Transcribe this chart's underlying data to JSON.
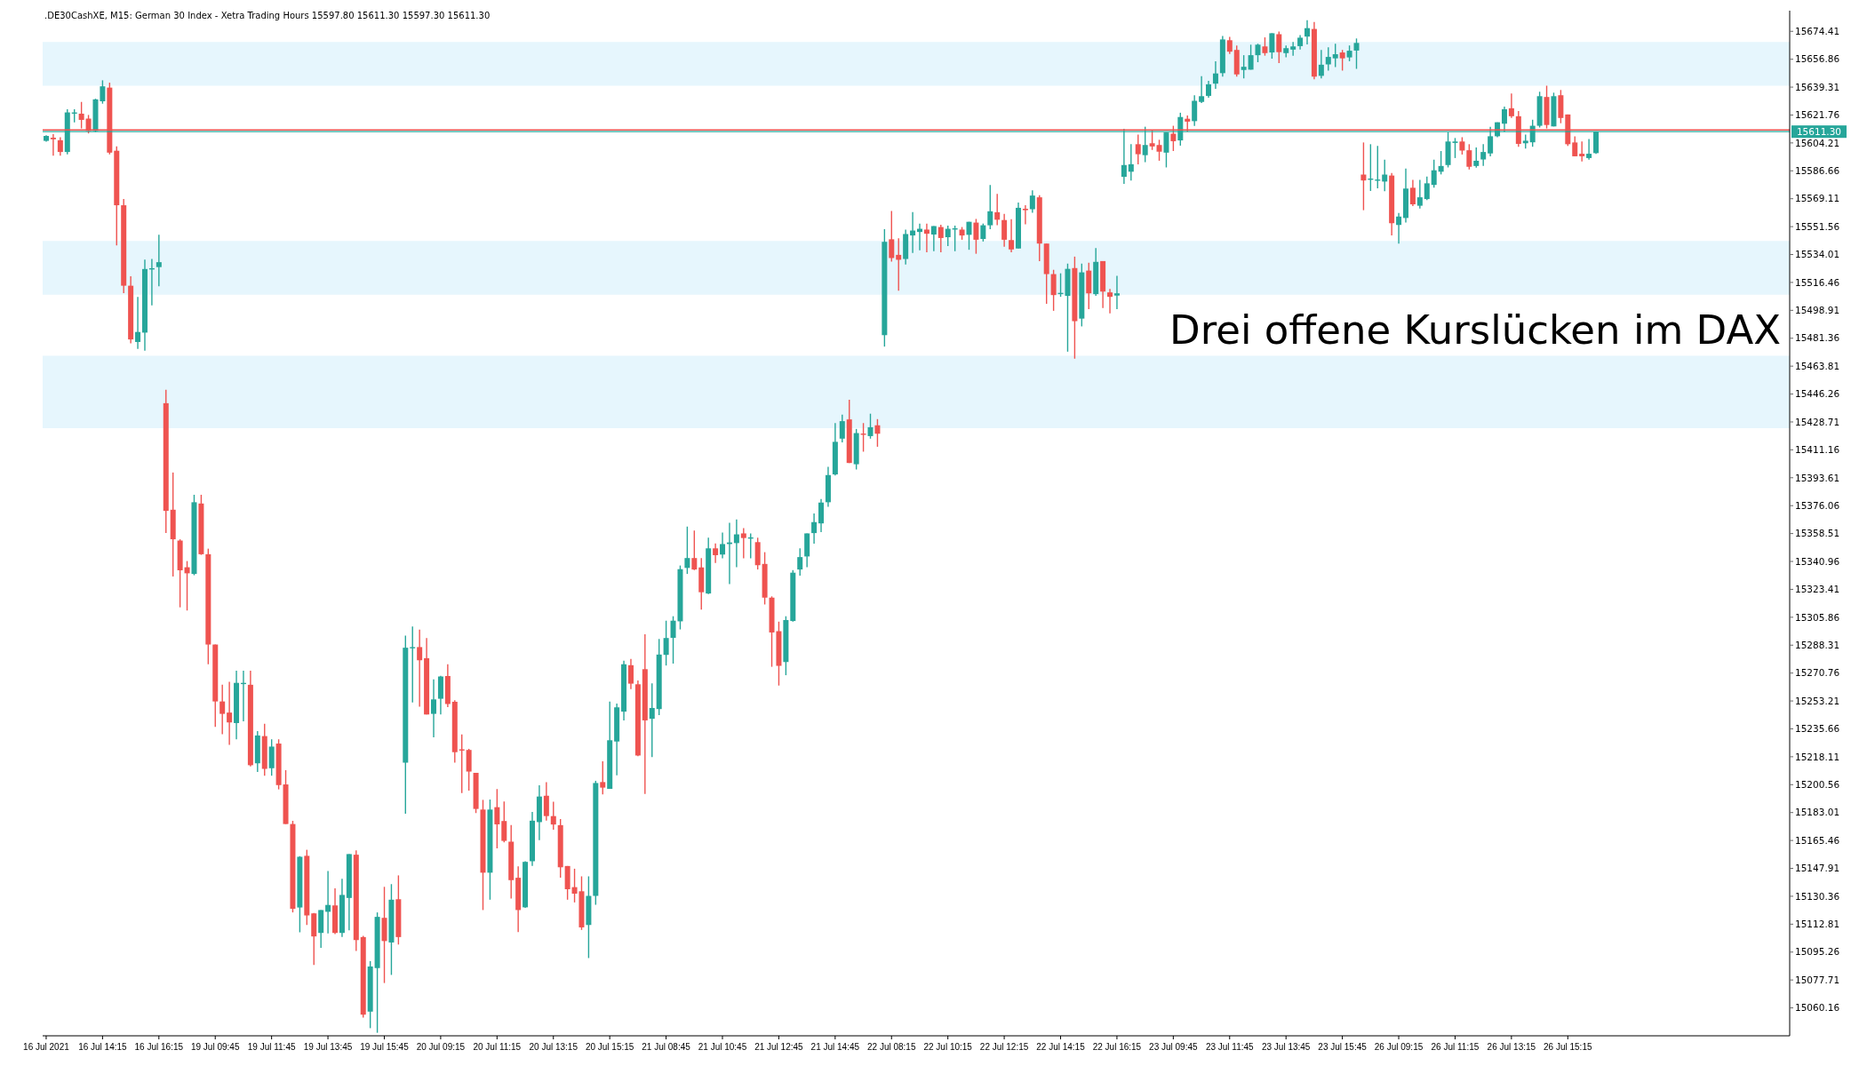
{
  "chart_data": {
    "type": "candlestick",
    "title": ".DE30CashXE, M15: German 30 Index - Xetra Trading Hours 15597.80 15611.30 15597.30 15611.30",
    "annotations": [
      "Drei offene Kurslücken im DAX"
    ],
    "categories": [
      "16 Jul 2021",
      null,
      null,
      null,
      null,
      null,
      null,
      null,
      "16 Jul 14:15",
      null,
      null,
      null,
      null,
      null,
      null,
      null,
      "16 Jul 16:15",
      null,
      null,
      null,
      null,
      null,
      null,
      null,
      "19 Jul 09:45",
      null,
      null,
      null,
      null,
      null,
      null,
      null,
      "19 Jul 11:45",
      null,
      null,
      null,
      null,
      null,
      null,
      null,
      "19 Jul 13:45",
      null,
      null,
      null,
      null,
      null,
      null,
      null,
      "19 Jul 15:45",
      null,
      null,
      null,
      null,
      null,
      null,
      null,
      "20 Jul 09:15",
      null,
      null,
      null,
      null,
      null,
      null,
      null,
      "20 Jul 11:15",
      null,
      null,
      null,
      null,
      null,
      null,
      null,
      "20 Jul 13:15",
      null,
      null,
      null,
      null,
      null,
      null,
      null,
      "20 Jul 15:15",
      null,
      null,
      null,
      null,
      null,
      null,
      null,
      "21 Jul 08:45",
      null,
      null,
      null,
      null,
      null,
      null,
      null,
      "21 Jul 10:45",
      null,
      null,
      null,
      null,
      null,
      null,
      null,
      "21 Jul 12:45",
      null,
      null,
      null,
      null,
      null,
      null,
      null,
      "21 Jul 14:45",
      null,
      null,
      null,
      null,
      null,
      null,
      null,
      "22 Jul 08:15",
      null,
      null,
      null,
      null,
      null,
      null,
      null,
      "22 Jul 10:15",
      null,
      null,
      null,
      null,
      null,
      null,
      null,
      "22 Jul 12:15",
      null,
      null,
      null,
      null,
      null,
      null,
      null,
      "22 Jul 14:15",
      null,
      null,
      null,
      null,
      null,
      null,
      null,
      "22 Jul 16:15",
      null,
      null,
      null,
      null,
      null,
      null,
      null,
      "23 Jul 09:45",
      null,
      null,
      null,
      null,
      null,
      null,
      null,
      "23 Jul 11:45",
      null,
      null,
      null,
      null,
      null,
      null,
      null,
      "23 Jul 13:45",
      null,
      null,
      null,
      null,
      null,
      null,
      null,
      "23 Jul 15:45",
      null,
      null,
      null,
      null,
      null,
      null,
      null,
      "26 Jul 09:15",
      null,
      null,
      null,
      null,
      null,
      null,
      null,
      "26 Jul 11:15",
      null,
      null,
      null,
      null,
      null,
      null,
      null,
      "26 Jul 13:15",
      null,
      null,
      null,
      null,
      null,
      null,
      null,
      "26 Jul 15:15",
      null,
      null,
      null,
      null,
      null,
      null,
      null,
      null,
      null,
      null,
      null,
      null,
      null,
      null,
      null,
      null,
      null,
      null,
      null,
      null,
      null,
      null,
      null,
      null,
      null,
      null,
      null,
      null,
      null,
      null,
      null
    ],
    "ohlc": [
      [
        15605.5,
        15609,
        15605,
        15608.6
      ],
      [
        15607.5,
        15609.8,
        15596.2,
        15606.5
      ],
      [
        15605.9,
        15607.8,
        15596.2,
        15598.5
      ],
      [
        15598.5,
        15625.4,
        15597,
        15623.4
      ],
      [
        15622.6,
        15625.4,
        15617.2,
        15623
      ],
      [
        15622.6,
        15630,
        15613.3,
        15618.7
      ],
      [
        15619.5,
        15621.8,
        15610.2,
        15611.7
      ],
      [
        15611.7,
        15632,
        15611,
        15631.6
      ],
      [
        15630.4,
        15643.6,
        15628.9,
        15639.8
      ],
      [
        15639,
        15642.1,
        15597,
        15598.1
      ],
      [
        15599.3,
        15602,
        15539.7,
        15565
      ],
      [
        15565,
        15568.9,
        15509.7,
        15514.4
      ],
      [
        15514.4,
        15520.3,
        15478.2,
        15480.6
      ],
      [
        15479,
        15507.4,
        15474.7,
        15485.3
      ],
      [
        15484.9,
        15530.8,
        15473.5,
        15524.9
      ],
      [
        15524.5,
        15531.2,
        15502,
        15525
      ],
      [
        15526.1,
        15546.4,
        15514,
        15529.2
      ],
      [
        15440.5,
        15449,
        15358.8,
        15372.8
      ],
      [
        15373.5,
        15396.9,
        15331.5,
        15354.9
      ],
      [
        15354.1,
        15354.9,
        15312.1,
        15335.4
      ],
      [
        15337.3,
        15341.2,
        15310.1,
        15333.5
      ],
      [
        15333.1,
        15382.9,
        15332.3,
        15378.2
      ],
      [
        15377.4,
        15382.9,
        15345.1,
        15345.5
      ],
      [
        15345.5,
        15349,
        15276.3,
        15288.7
      ],
      [
        15288.7,
        15288.7,
        15236.9,
        15252.9
      ],
      [
        15252.9,
        15263.4,
        15232.3,
        15245.1
      ],
      [
        15245.9,
        15265.3,
        15225.6,
        15239.7
      ],
      [
        15239.3,
        15272.3,
        15229.1,
        15264.6
      ],
      [
        15264,
        15272.3,
        15240.4,
        15264.2
      ],
      [
        15263.4,
        15272.3,
        15212,
        15212.8
      ],
      [
        15214,
        15234.2,
        15208.5,
        15231.5
      ],
      [
        15231.1,
        15238.9,
        15206.2,
        15210.5
      ],
      [
        15210.9,
        15229.1,
        15206.2,
        15224.5
      ],
      [
        15226.4,
        15229.1,
        15197.6,
        15200.3
      ],
      [
        15200.7,
        15209.7,
        15175.8,
        15175.8
      ],
      [
        15175.8,
        15177.8,
        15120.2,
        15122.5
      ],
      [
        15123.3,
        15155.6,
        15107.7,
        15155.2
      ],
      [
        15155.8,
        15159.6,
        15112.3,
        15118.3
      ],
      [
        15119.6,
        15119.8,
        15087.1,
        15105.1
      ],
      [
        15107.3,
        15121.7,
        15097.9,
        15121.7
      ],
      [
        15120.6,
        15146.3,
        15107,
        15124.9
      ],
      [
        15124.6,
        15135.4,
        15106.6,
        15107.3
      ],
      [
        15107.3,
        15141.4,
        15104.7,
        15131.2
      ],
      [
        15129.3,
        15156.9,
        15108.9,
        15156.9
      ],
      [
        15156.5,
        15159.2,
        15096,
        15102.8
      ],
      [
        15104.7,
        15105.5,
        15054,
        15055.9
      ],
      [
        15057.8,
        15089.6,
        15047.4,
        15086.2
      ],
      [
        15085.2,
        15120.2,
        15044.5,
        15117.4
      ],
      [
        15116.8,
        15136.3,
        15075.8,
        15102.2
      ],
      [
        15101.3,
        15138,
        15080.9,
        15128.2
      ],
      [
        15128.5,
        15143.5,
        15100,
        15104.7
      ],
      [
        15214.4,
        15294.3,
        15182.3,
        15286.7
      ],
      [
        15286.3,
        15300,
        15252.3,
        15286.7
      ],
      [
        15287.1,
        15298.1,
        15249.6,
        15278.8
      ],
      [
        15280.1,
        15292.8,
        15244.7,
        15244.7
      ],
      [
        15245.1,
        15266.8,
        15230.3,
        15254.2
      ],
      [
        15254.6,
        15269.1,
        15244.7,
        15268.6
      ],
      [
        15268.9,
        15276.3,
        15249.3,
        15251.3
      ],
      [
        15252.7,
        15253.6,
        15214.4,
        15221
      ],
      [
        15222.4,
        15232.2,
        15195.3,
        15222
      ],
      [
        15222.4,
        15223.1,
        15196.8,
        15208.8
      ],
      [
        15208,
        15208,
        15182.7,
        15185.3
      ],
      [
        15184.9,
        15191,
        15121.7,
        15145.2
      ],
      [
        15145.2,
        15191.2,
        15128.2,
        15184.9
      ],
      [
        15186.4,
        15197.8,
        15160.5,
        15175.6
      ],
      [
        15177.7,
        15190,
        15164.3,
        15165.2
      ],
      [
        15164.7,
        15175.1,
        15128.9,
        15140.5
      ],
      [
        15142,
        15149.2,
        15107.9,
        15121.7
      ],
      [
        15123.4,
        15152.4,
        15123,
        15152
      ],
      [
        15152.4,
        15183.4,
        15149.5,
        15177.9
      ],
      [
        15177,
        15200.1,
        15165.6,
        15193.1
      ],
      [
        15193.6,
        15202.1,
        15177.9,
        15180.8
      ],
      [
        15180.8,
        15189.8,
        15172.2,
        15175.5
      ],
      [
        15175.1,
        15178.9,
        15142,
        15148.6
      ],
      [
        15149.4,
        15149.4,
        15128.2,
        15134.8
      ],
      [
        15136.1,
        15147.7,
        15126.5,
        15132
      ],
      [
        15133.5,
        15142.9,
        15109.2,
        15110.8
      ],
      [
        15112.3,
        15142.9,
        15091.5,
        15130.6
      ],
      [
        15130.6,
        15203,
        15125,
        15201.6
      ],
      [
        15202.2,
        15215.3,
        15194.4,
        15198.7
      ],
      [
        15197.9,
        15252.8,
        15197.9,
        15228.5
      ],
      [
        15227.7,
        15251.6,
        15206.5,
        15249.2
      ],
      [
        15246.5,
        15278.6,
        15241,
        15276.3
      ],
      [
        15275.7,
        15279.6,
        15260.6,
        15264.1
      ],
      [
        15263.7,
        15266.1,
        15218.5,
        15218.9
      ],
      [
        15273.2,
        15295.1,
        15194.7,
        15241
      ],
      [
        15242,
        15264.3,
        15217.9,
        15248.8
      ],
      [
        15248.1,
        15292.2,
        15244.3,
        15282.4
      ],
      [
        15282.2,
        15303.7,
        15275.5,
        15292.8
      ],
      [
        15292.9,
        15306.5,
        15276.7,
        15303.7
      ],
      [
        15303.3,
        15338.4,
        15298.2,
        15336.1
      ],
      [
        15336.9,
        15362.9,
        15333.1,
        15343.1
      ],
      [
        15343.1,
        15360.4,
        15335.5,
        15335.9
      ],
      [
        15337.2,
        15343.1,
        15310.6,
        15321.6
      ],
      [
        15320.8,
        15355.9,
        15320.4,
        15349.2
      ],
      [
        15349.2,
        15352.3,
        15340,
        15344.9
      ],
      [
        15345.3,
        15359.2,
        15342.9,
        15351.9
      ],
      [
        15351.9,
        15365.3,
        15326.7,
        15352.9
      ],
      [
        15352.5,
        15367.4,
        15337.4,
        15358
      ],
      [
        15358.6,
        15361.9,
        15342.9,
        15355.7
      ],
      [
        15355.5,
        15358.6,
        15342.9,
        15355.7
      ],
      [
        15353.1,
        15355.9,
        15335.9,
        15338.6
      ],
      [
        15339.4,
        15346.8,
        15313.9,
        15318.2
      ],
      [
        15318.2,
        15319,
        15274.7,
        15296.3
      ],
      [
        15297.1,
        15303.1,
        15262.9,
        15275.3
      ],
      [
        15277.7,
        15306.5,
        15269.4,
        15304.1
      ],
      [
        15303.5,
        15335.5,
        15303.1,
        15333.9
      ],
      [
        15335.9,
        15349.2,
        15332,
        15343.7
      ],
      [
        15344.1,
        15358.6,
        15337.4,
        15358.6
      ],
      [
        15358.8,
        15371.2,
        15352.1,
        15365.7
      ],
      [
        15364.9,
        15380.2,
        15359.4,
        15378
      ],
      [
        15378.2,
        15400.5,
        15375.3,
        15395.3
      ],
      [
        15395.7,
        15428,
        15395.1,
        15416.2
      ],
      [
        15418.2,
        15433.3,
        15415.8,
        15429.2
      ],
      [
        15430.3,
        15442.7,
        15402.9,
        15402.9
      ],
      [
        15402.1,
        15424.3,
        15398.8,
        15421.7
      ],
      [
        15421,
        15428,
        15410,
        15420.5
      ],
      [
        15419.8,
        15433.9,
        15418.2,
        15425.4
      ],
      [
        15426.6,
        15430.5,
        15413.1,
        15421.3
      ],
      [
        15483.3,
        15550,
        15476.1,
        15542
      ],
      [
        15543.6,
        15561.4,
        15529.6,
        15531.8
      ],
      [
        15533.8,
        15544.2,
        15511.3,
        15530.7
      ],
      [
        15531.2,
        15549.7,
        15527.7,
        15546.9
      ],
      [
        15546,
        15560.7,
        15535,
        15549.1
      ],
      [
        15548.2,
        15553.5,
        15536.7,
        15550.2
      ],
      [
        15549.7,
        15553.5,
        15535.4,
        15547.1
      ],
      [
        15546.6,
        15551.9,
        15536.1,
        15551.9
      ],
      [
        15551.3,
        15552.8,
        15535.4,
        15544.4
      ],
      [
        15544.9,
        15552.2,
        15539.4,
        15550.2
      ],
      [
        15550,
        15552.2,
        15536.1,
        15550.1
      ],
      [
        15549.7,
        15551.3,
        15543.3,
        15546
      ],
      [
        15546.4,
        15554.6,
        15537,
        15554.6
      ],
      [
        15554.1,
        15556.4,
        15534.5,
        15543.3
      ],
      [
        15543.8,
        15553.5,
        15542.2,
        15552.4
      ],
      [
        15552.4,
        15577.7,
        15549.9,
        15561.2
      ],
      [
        15560.6,
        15572.2,
        15552.4,
        15555.9
      ],
      [
        15555.7,
        15559.6,
        15538.9,
        15543.3
      ],
      [
        15543.1,
        15556.3,
        15535.4,
        15537.2
      ],
      [
        15537.8,
        15566.7,
        15537.8,
        15563.4
      ],
      [
        15562.8,
        15565,
        15553,
        15561.9
      ],
      [
        15562.5,
        15574.4,
        15560.3,
        15571.1
      ],
      [
        15570,
        15571.3,
        15529.9,
        15540.9
      ],
      [
        15540.9,
        15540.9,
        15503,
        15521.7
      ],
      [
        15521.7,
        15524.4,
        15498.6,
        15508.5
      ],
      [
        15509.4,
        15522.2,
        15507.4,
        15509.5
      ],
      [
        15508,
        15528.3,
        15472.9,
        15525
      ],
      [
        15525.5,
        15532.7,
        15468.5,
        15492.1
      ],
      [
        15493.7,
        15528.3,
        15488.8,
        15522.8
      ],
      [
        15523.9,
        15528.8,
        15499.7,
        15509.6
      ],
      [
        15509.1,
        15538.1,
        15508,
        15529.4
      ],
      [
        15529.9,
        15529.9,
        15500.3,
        15510.7
      ],
      [
        15510.2,
        15512.4,
        15497,
        15507.4
      ],
      [
        15508.2,
        15520.6,
        15499.7,
        15509.6
      ],
      [
        15582.9,
        15613.1,
        15578.4,
        15590.3
      ],
      [
        15586.1,
        15603.4,
        15580.6,
        15590.8
      ],
      [
        15603.4,
        15609.5,
        15590.8,
        15597.1
      ],
      [
        15596.5,
        15614.4,
        15592.1,
        15602.9
      ],
      [
        15604,
        15611.9,
        15599.8,
        15602
      ],
      [
        15602.9,
        15606.2,
        15593,
        15598.7
      ],
      [
        15598.1,
        15610.8,
        15588.8,
        15610.8
      ],
      [
        15610,
        15615,
        15599.1,
        15605.3
      ],
      [
        15605.8,
        15623.2,
        15602.5,
        15620.5
      ],
      [
        15619.4,
        15621.4,
        15611.3,
        15617.6
      ],
      [
        15617.9,
        15634.2,
        15614.9,
        15630.7
      ],
      [
        15630,
        15646.2,
        15629.3,
        15633.6
      ],
      [
        15633.8,
        15643.3,
        15632.7,
        15641.1
      ],
      [
        15641.5,
        15655.6,
        15638.2,
        15647.9
      ],
      [
        15648.1,
        15671.5,
        15645.9,
        15669.3
      ],
      [
        15668.8,
        15670.9,
        15660.2,
        15661.6
      ],
      [
        15662.7,
        15665.5,
        15645.9,
        15647.3
      ],
      [
        15650.1,
        15659.4,
        15644.8,
        15652.1
      ],
      [
        15650.3,
        15666,
        15650.3,
        15659.4
      ],
      [
        15659.4,
        15666.6,
        15655,
        15666
      ],
      [
        15664.9,
        15670.6,
        15659.1,
        15660.7
      ],
      [
        15661.1,
        15673.2,
        15657.2,
        15673.2
      ],
      [
        15672.6,
        15674.2,
        15654.5,
        15661.3
      ],
      [
        15660.7,
        15665.5,
        15658,
        15663.8
      ],
      [
        15662.9,
        15667.7,
        15659.1,
        15664.9
      ],
      [
        15665.1,
        15672.1,
        15662.9,
        15670.4
      ],
      [
        15671.1,
        15681.4,
        15666.2,
        15676.4
      ],
      [
        15675.9,
        15680.3,
        15644.2,
        15645.9
      ],
      [
        15646.4,
        15662.7,
        15644.8,
        15653.4
      ],
      [
        15653.6,
        15664.4,
        15649.7,
        15658.3
      ],
      [
        15657.4,
        15666.6,
        15651.9,
        15660
      ],
      [
        15661.1,
        15662.7,
        15649.7,
        15657.4
      ],
      [
        15658,
        15665.5,
        15655.6,
        15662.2
      ],
      [
        15662.3,
        15669.9,
        15650.8,
        15667.1
      ],
      [
        15584.3,
        15604.5,
        15561.9,
        15580.6
      ],
      [
        15581.3,
        15603.4,
        15574,
        15581.4
      ],
      [
        15580.7,
        15602.3,
        15575.6,
        15580.8
      ],
      [
        15579.9,
        15593.6,
        15573.8,
        15584.3
      ],
      [
        15583.7,
        15585.3,
        15546,
        15553.7
      ],
      [
        15552.6,
        15560.1,
        15540.9,
        15557.9
      ],
      [
        15557,
        15588.1,
        15554.1,
        15575.5
      ],
      [
        15576,
        15580.9,
        15564.5,
        15565.6
      ],
      [
        15564.7,
        15580.9,
        15563,
        15570
      ],
      [
        15568.9,
        15583.1,
        15568.3,
        15578.8
      ],
      [
        15577.8,
        15593.6,
        15576,
        15587
      ],
      [
        15586.1,
        15599.1,
        15584.4,
        15589.7
      ],
      [
        15590.3,
        15610.9,
        15588.8,
        15605.1
      ],
      [
        15604.2,
        15607.3,
        15594.7,
        15605.1
      ],
      [
        15605.1,
        15607.8,
        15596.9,
        15599.4
      ],
      [
        15599.6,
        15603.4,
        15587.5,
        15589.2
      ],
      [
        15589.7,
        15601.3,
        15588.6,
        15593
      ],
      [
        15593.8,
        15603.4,
        15589.7,
        15598.5
      ],
      [
        15597.6,
        15614.4,
        15595.8,
        15608.4
      ],
      [
        15608.4,
        15617.2,
        15607.8,
        15617.2
      ],
      [
        15616.3,
        15627.1,
        15611.1,
        15625.4
      ],
      [
        15626,
        15635.3,
        15619.9,
        15621
      ],
      [
        15621,
        15624.3,
        15601.8,
        15603.6
      ],
      [
        15604,
        15609.5,
        15600.7,
        15605.6
      ],
      [
        15604.6,
        15618.8,
        15601.8,
        15615
      ],
      [
        15615,
        15636.4,
        15613.9,
        15633.6
      ],
      [
        15633.1,
        15640.2,
        15613.3,
        15615.5
      ],
      [
        15614.6,
        15635.8,
        15614.6,
        15633.6
      ],
      [
        15634.2,
        15637.5,
        15616.6,
        15619.9
      ],
      [
        15622.1,
        15622.1,
        15602.3,
        15603.4
      ],
      [
        15604.5,
        15608.4,
        15595.8,
        15595.8
      ],
      [
        15597.4,
        15605.1,
        15592.5,
        15595.8
      ],
      [
        15594.7,
        15606.7,
        15593.6,
        15597.4
      ],
      [
        15597.8,
        15611.3,
        15597.3,
        15611.3
      ],
      null,
      null,
      null,
      null,
      null,
      null,
      null,
      null,
      null,
      null,
      null,
      null,
      null,
      null,
      null,
      null,
      null,
      null,
      null,
      null,
      null,
      null,
      null,
      null,
      null,
      null,
      null
    ],
    "ylim": [
      15042.6,
      15687.4
    ],
    "yticks": [
      15060.16,
      15077.71,
      15095.26,
      15112.81,
      15130.36,
      15147.91,
      15165.46,
      15183.01,
      15200.56,
      15218.11,
      15235.66,
      15253.21,
      15270.76,
      15288.31,
      15305.86,
      15323.41,
      15340.96,
      15358.51,
      15376.06,
      15393.61,
      15411.16,
      15428.71,
      15446.26,
      15463.81,
      15481.36,
      15498.91,
      15516.46,
      15534.01,
      15551.56,
      15569.11,
      15586.66,
      15604.21,
      15621.76,
      15639.31,
      15656.86,
      15674.41
    ],
    "bands": [
      {
        "axis": "y",
        "from": 15640.2,
        "to": 15667.7,
        "color": "#e6f6fd"
      },
      {
        "axis": "y",
        "from": 15508.7,
        "to": 15542.5,
        "color": "#e6f6fd"
      },
      {
        "axis": "y",
        "from": 15424.8,
        "to": 15470.3,
        "color": "#e6f6fd"
      }
    ],
    "ref_lines": [
      {
        "axis": "y",
        "value": 15612.4,
        "color": "#ef5350"
      },
      {
        "axis": "y",
        "value": 15611.3,
        "label": "15611.30",
        "color": "#26a69a"
      }
    ]
  }
}
